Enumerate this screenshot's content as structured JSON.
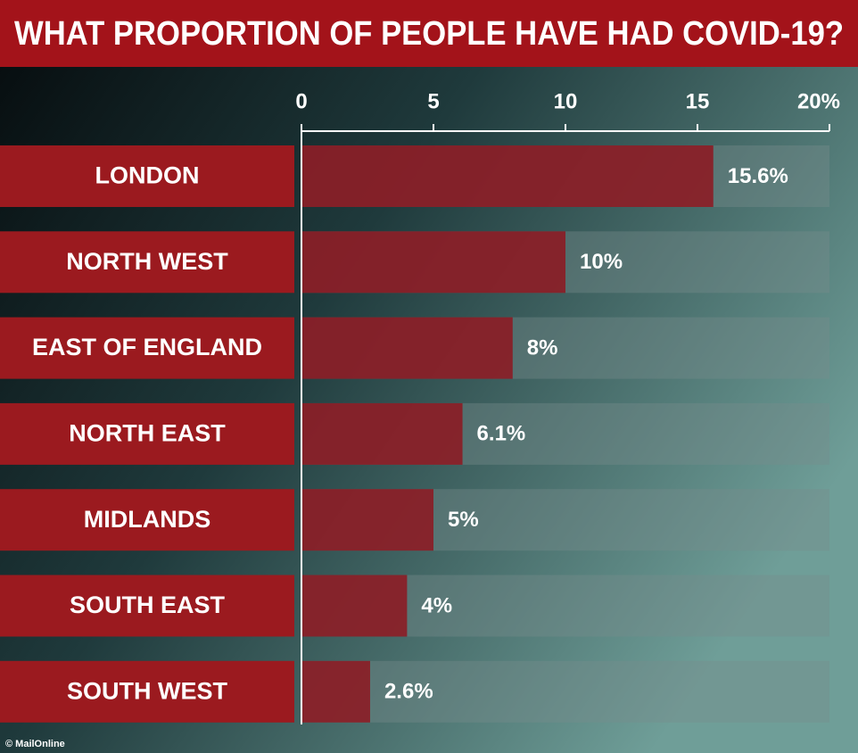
{
  "chart_data": {
    "type": "bar",
    "orientation": "horizontal",
    "title": "WHAT PROPORTION OF PEOPLE HAVE HAD COVID-19?",
    "categories": [
      "LONDON",
      "NORTH WEST",
      "EAST OF ENGLAND",
      "NORTH EAST",
      "MIDLANDS",
      "SOUTH EAST",
      "SOUTH WEST"
    ],
    "values": [
      15.6,
      10,
      8,
      6.1,
      5,
      4,
      2.6
    ],
    "value_labels": [
      "15.6%",
      "10%",
      "8%",
      "6.1%",
      "5%",
      "4%",
      "2.6%"
    ],
    "color": "#8e1620",
    "xlim": [
      0,
      20
    ],
    "xticks": [
      0,
      5,
      10,
      15,
      {
        "value": 20,
        "label": "20%"
      }
    ],
    "grid": false,
    "source": "© MailOnline"
  }
}
